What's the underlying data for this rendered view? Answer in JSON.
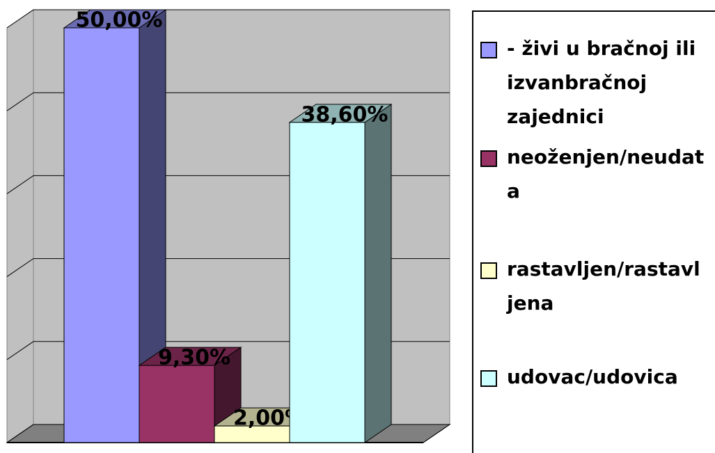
{
  "chart_data": {
    "type": "bar3d",
    "categories": [
      null
    ],
    "series": [
      {
        "name": "- živi u bračnoj ili izvanbračnoj zajednici",
        "color": "#9999ff",
        "values": [
          50
        ],
        "value_labels": [
          "50,00%"
        ]
      },
      {
        "name": "neoženjen/neudata",
        "color": "#993366",
        "values": [
          9.3
        ],
        "value_labels": [
          "9,30%"
        ]
      },
      {
        "name": "rastavljen/rastavljena",
        "color": "#ffffcc",
        "values": [
          2
        ],
        "value_labels": [
          "2,00%"
        ]
      },
      {
        "name": "udovac/udovica",
        "color": "#ccffff",
        "values": [
          38.6
        ],
        "value_labels": [
          "38,60%"
        ]
      }
    ],
    "ylim": [
      0,
      50
    ],
    "yticks": [
      0,
      10,
      20,
      30,
      40,
      50
    ],
    "grid": true,
    "legend": "right"
  }
}
